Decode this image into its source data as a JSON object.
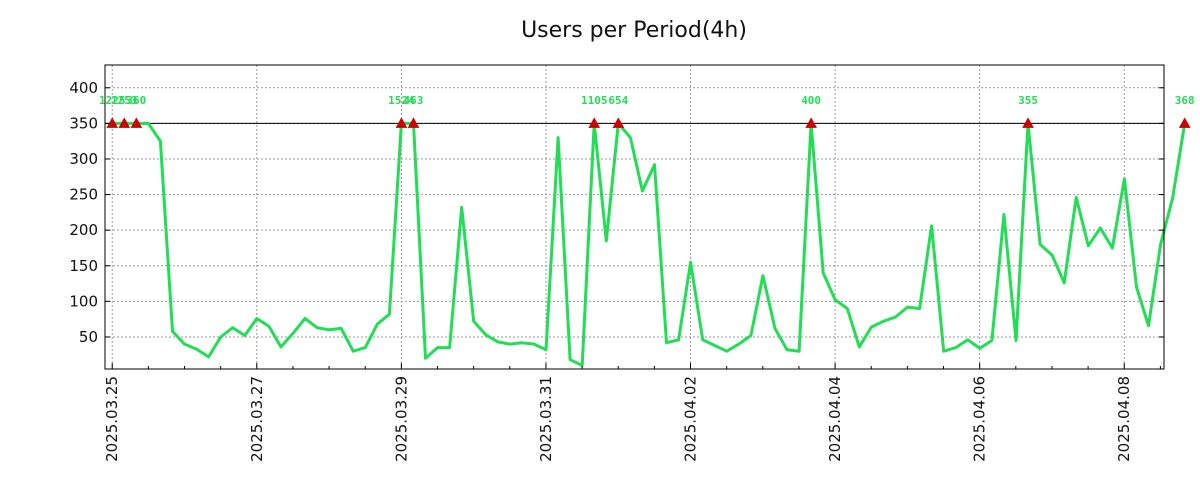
{
  "chart_data": {
    "type": "line",
    "title": "Users per Period(4h)",
    "xlabel": "",
    "ylabel": "",
    "x_ticks": [
      "2025.03.25",
      "2025.03.27",
      "2025.03.29",
      "2025.03.31",
      "2025.04.02",
      "2025.04.04",
      "2025.04.06",
      "2025.04.08"
    ],
    "x_range_days": [
      -0.1,
      14.55
    ],
    "ylim": [
      5,
      432
    ],
    "y_ticks": [
      50,
      100,
      150,
      200,
      250,
      300,
      350,
      400
    ],
    "grid": true,
    "cap_value": 350,
    "colors": {
      "line": "#22dd55",
      "marker": "#cc0000",
      "label": "#22dd55",
      "axis": "#000000"
    },
    "series": [
      {
        "name": "Users",
        "step_days": 0.1667,
        "values": [
          350,
          350,
          350,
          350,
          325,
          58,
          40,
          33,
          22,
          50,
          63,
          52,
          76,
          65,
          36,
          55,
          76,
          63,
          60,
          62,
          30,
          35,
          68,
          82,
          350,
          350,
          20,
          35,
          35,
          232,
          72,
          53,
          43,
          40,
          42,
          40,
          32,
          330,
          18,
          10,
          350,
          185,
          350,
          330,
          255,
          292,
          42,
          46,
          155,
          46,
          38,
          30,
          40,
          52,
          136,
          62,
          32,
          30,
          350,
          140,
          102,
          90,
          36,
          64,
          72,
          78,
          92,
          90,
          206,
          30,
          35,
          46,
          34,
          45,
          222,
          45,
          350,
          180,
          165,
          126,
          246,
          178,
          203,
          175,
          272,
          120,
          66,
          180,
          245,
          350
        ]
      }
    ],
    "peaks": [
      {
        "index": 0,
        "label": "1225"
      },
      {
        "index": 1,
        "label": "1253"
      },
      {
        "index": 2,
        "label": "360"
      },
      {
        "index": 24,
        "label": "1524"
      },
      {
        "index": 25,
        "label": "463"
      },
      {
        "index": 40,
        "label": "1105"
      },
      {
        "index": 42,
        "label": "654"
      },
      {
        "index": 58,
        "label": "400"
      },
      {
        "index": 76,
        "label": "355"
      },
      {
        "index": 89,
        "label": "368"
      }
    ]
  }
}
